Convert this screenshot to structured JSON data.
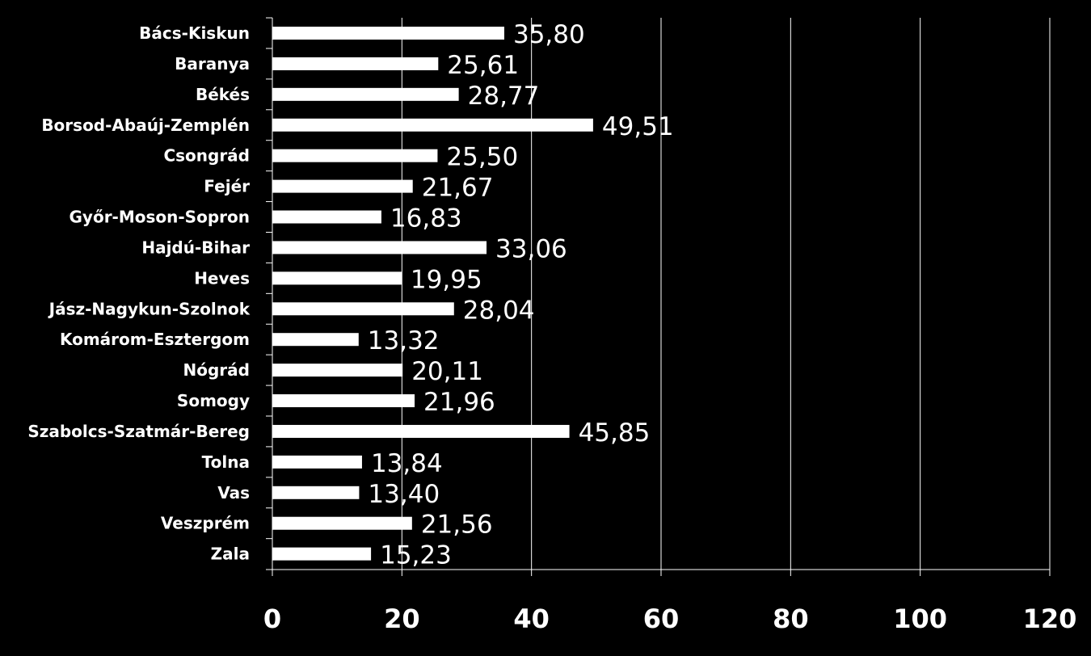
{
  "chart_data": {
    "type": "bar",
    "orientation": "horizontal",
    "categories": [
      "Bács-Kiskun",
      "Baranya",
      "Békés",
      "Borsod-Abaúj-Zemplén",
      "Csongrád",
      "Fejér",
      "Győr-Moson-Sopron",
      "Hajdú-Bihar",
      "Heves",
      "Jász-Nagykun-Szolnok",
      "Komárom-Esztergom",
      "Nógrád",
      "Somogy",
      "Szabolcs-Szatmár-Bereg",
      "Tolna",
      "Vas",
      "Veszprém",
      "Zala"
    ],
    "values": [
      35.8,
      25.61,
      28.77,
      49.51,
      25.5,
      21.67,
      16.83,
      33.06,
      19.95,
      28.04,
      13.32,
      20.11,
      21.96,
      45.85,
      13.84,
      13.4,
      21.56,
      15.23
    ],
    "value_labels": [
      "35,80",
      "25,61",
      "28,77",
      "49,51",
      "25,50",
      "21,67",
      "16,83",
      "33,06",
      "19,95",
      "28,04",
      "13,32",
      "20,11",
      "21,96",
      "45,85",
      "13,84",
      "13,40",
      "21,56",
      "15,23"
    ],
    "xlim": [
      0,
      120
    ],
    "xticks": [
      "0",
      "20",
      "40",
      "60",
      "80",
      "100",
      "120"
    ],
    "title": "",
    "xlabel": "",
    "ylabel": "",
    "grid": "vertical",
    "legend": "none",
    "colors": {
      "background": "#000000",
      "bar": "#ffffff",
      "text": "#ffffff",
      "grid": "#ffffff"
    }
  }
}
